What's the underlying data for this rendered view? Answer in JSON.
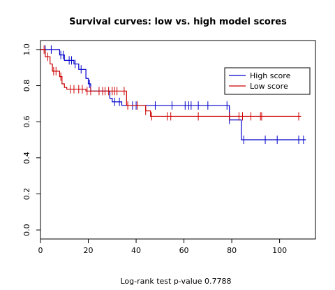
{
  "chart_data": {
    "type": "line",
    "title": "Survival curves: low vs. high model scores",
    "xlabel": "",
    "ylabel": "",
    "footnote": "Log-rank test p-value  0.7788",
    "xlim": [
      0,
      115
    ],
    "ylim": [
      -0.05,
      1.05
    ],
    "x_ticks": [
      0,
      20,
      40,
      60,
      80,
      100
    ],
    "y_ticks": [
      0.0,
      0.2,
      0.4,
      0.6,
      0.8,
      1.0
    ],
    "x_tick_labels": [
      "0",
      "20",
      "40",
      "60",
      "80",
      "100"
    ],
    "y_tick_labels": [
      "0.0",
      "0.2",
      "0.4",
      "0.6",
      "0.8",
      "1.0"
    ],
    "legend_position": "right",
    "series": [
      {
        "name": "High score",
        "color": "#0000cc",
        "steps": [
          [
            0,
            1.0
          ],
          [
            8,
            0.97
          ],
          [
            10,
            0.94
          ],
          [
            14,
            0.92
          ],
          [
            16,
            0.89
          ],
          [
            19,
            0.84
          ],
          [
            20,
            0.81
          ],
          [
            21,
            0.77
          ],
          [
            29,
            0.73
          ],
          [
            30,
            0.71
          ],
          [
            34,
            0.69
          ],
          [
            79,
            0.61
          ],
          [
            84,
            0.5
          ],
          [
            111,
            0.5
          ]
        ],
        "censors": [
          2,
          4.5,
          8.5,
          9.5,
          12,
          13,
          14.5,
          17,
          20.5,
          31,
          33,
          38.5,
          40,
          48,
          55,
          60.5,
          62,
          63,
          66,
          70,
          78,
          79,
          85,
          94,
          99,
          108,
          110
        ]
      },
      {
        "name": "Low score",
        "color": "#cc0000",
        "steps": [
          [
            0,
            1.0
          ],
          [
            2,
            0.96
          ],
          [
            4,
            0.92
          ],
          [
            5,
            0.88
          ],
          [
            8,
            0.85
          ],
          [
            9,
            0.81
          ],
          [
            10,
            0.79
          ],
          [
            11,
            0.78
          ],
          [
            19,
            0.77
          ],
          [
            36,
            0.69
          ],
          [
            44,
            0.66
          ],
          [
            46,
            0.63
          ],
          [
            109,
            0.63
          ]
        ],
        "censors": [
          1.5,
          3,
          5.5,
          6.5,
          8.5,
          12.5,
          14,
          16,
          17.5,
          19.5,
          21,
          24.5,
          26,
          27,
          28.5,
          30,
          31,
          32,
          35,
          36.5,
          40.5,
          44,
          46.5,
          53,
          54.5,
          66,
          79,
          83,
          84.5,
          88,
          92,
          92.5,
          108
        ]
      }
    ]
  }
}
